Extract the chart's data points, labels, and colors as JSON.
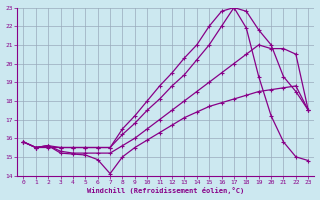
{
  "xlabel": "Windchill (Refroidissement éolien,°C)",
  "bg_color": "#cce8f0",
  "line_color": "#880088",
  "grid_color": "#99aabb",
  "xlim": [
    -0.5,
    23.5
  ],
  "ylim": [
    14,
    23
  ],
  "xticks": [
    0,
    1,
    2,
    3,
    4,
    5,
    6,
    7,
    8,
    9,
    10,
    11,
    12,
    13,
    14,
    15,
    16,
    17,
    18,
    19,
    20,
    21,
    22,
    23
  ],
  "yticks": [
    14,
    15,
    16,
    17,
    18,
    19,
    20,
    21,
    22,
    23
  ],
  "lines": [
    {
      "x": [
        0,
        1,
        2,
        3,
        4,
        5,
        6,
        7,
        8,
        9,
        10,
        11,
        12,
        13,
        14,
        15,
        16,
        17,
        18,
        19,
        20,
        21,
        22,
        23
      ],
      "y": [
        15.8,
        15.5,
        15.6,
        15.2,
        15.15,
        15.1,
        14.85,
        14.1,
        15.0,
        15.5,
        15.9,
        16.3,
        16.7,
        17.1,
        17.4,
        17.7,
        17.9,
        18.1,
        18.3,
        18.5,
        18.6,
        18.7,
        18.8,
        17.5
      ]
    },
    {
      "x": [
        0,
        1,
        2,
        3,
        4,
        5,
        6,
        7,
        8,
        9,
        10,
        11,
        12,
        13,
        14,
        15,
        16,
        17,
        18,
        19,
        20,
        21,
        22,
        23
      ],
      "y": [
        15.8,
        15.5,
        15.6,
        15.3,
        15.2,
        15.2,
        15.2,
        15.2,
        15.6,
        16.0,
        16.5,
        17.0,
        17.5,
        18.0,
        18.5,
        19.0,
        19.5,
        20.0,
        20.5,
        21.0,
        20.8,
        20.8,
        20.5,
        17.5
      ]
    },
    {
      "x": [
        0,
        1,
        2,
        3,
        4,
        5,
        6,
        7,
        8,
        9,
        10,
        11,
        12,
        13,
        14,
        15,
        16,
        17,
        18,
        19,
        20,
        21,
        22,
        23
      ],
      "y": [
        15.8,
        15.5,
        15.6,
        15.5,
        15.5,
        15.5,
        15.5,
        15.5,
        16.2,
        16.8,
        17.5,
        18.1,
        18.8,
        19.4,
        20.2,
        21.0,
        22.0,
        23.0,
        21.9,
        19.3,
        17.2,
        15.8,
        15.0,
        14.8
      ]
    },
    {
      "x": [
        0,
        1,
        2,
        3,
        4,
        5,
        6,
        7,
        8,
        9,
        10,
        11,
        12,
        13,
        14,
        15,
        16,
        17,
        18,
        19,
        20,
        21,
        22,
        23
      ],
      "y": [
        15.8,
        15.5,
        15.5,
        15.5,
        15.5,
        15.5,
        15.5,
        15.5,
        16.5,
        17.2,
        18.0,
        18.8,
        19.5,
        20.3,
        21.0,
        22.0,
        22.8,
        23.0,
        22.8,
        21.8,
        21.0,
        19.3,
        18.5,
        17.5
      ]
    }
  ]
}
